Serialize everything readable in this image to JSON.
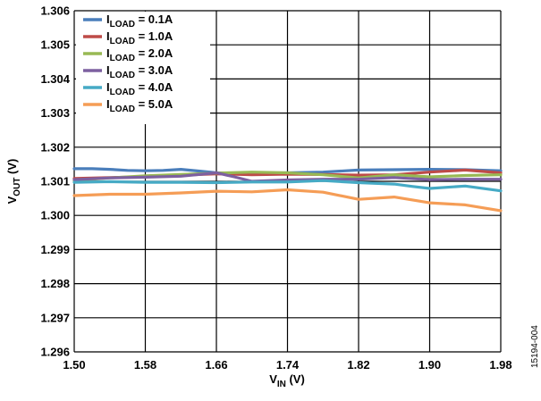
{
  "figure_id": "15194-004",
  "chart_data": {
    "type": "line",
    "xlabel": {
      "main": "V",
      "sub": "IN",
      "tail": " (V)"
    },
    "ylabel": {
      "main": "V",
      "sub": "OUT",
      "tail": " (V)"
    },
    "xlim": [
      1.5,
      1.98
    ],
    "ylim": [
      1.296,
      1.306
    ],
    "x_ticks": [
      "1.50",
      "1.58",
      "1.66",
      "1.74",
      "1.82",
      "1.90",
      "1.98"
    ],
    "y_ticks": [
      "1.296",
      "1.297",
      "1.298",
      "1.299",
      "1.300",
      "1.301",
      "1.302",
      "1.303",
      "1.304",
      "1.305",
      "1.306"
    ],
    "grid": true,
    "legend_position": "top-left",
    "series": [
      {
        "name": "I",
        "sub": "LOAD",
        "value": " = 0.1A",
        "color": "#4a7ebb",
        "x": [
          1.5,
          1.52,
          1.54,
          1.56,
          1.58,
          1.6,
          1.62,
          1.64,
          1.66,
          1.7,
          1.74,
          1.78,
          1.82,
          1.86,
          1.9,
          1.94,
          1.98
        ],
        "y": [
          1.30137,
          1.30137,
          1.30135,
          1.30132,
          1.30131,
          1.30132,
          1.30135,
          1.3013,
          1.30125,
          1.30124,
          1.30125,
          1.30127,
          1.30133,
          1.30134,
          1.30135,
          1.30134,
          1.30131
        ]
      },
      {
        "name": "I",
        "sub": "LOAD",
        "value": " = 1.0A",
        "color": "#be4b48",
        "x": [
          1.5,
          1.54,
          1.58,
          1.62,
          1.66,
          1.7,
          1.74,
          1.78,
          1.82,
          1.86,
          1.9,
          1.94,
          1.98
        ],
        "y": [
          1.30108,
          1.30111,
          1.30113,
          1.30118,
          1.30122,
          1.30119,
          1.30121,
          1.3012,
          1.30118,
          1.30119,
          1.30127,
          1.30133,
          1.30125
        ]
      },
      {
        "name": "I",
        "sub": "LOAD",
        "value": " = 2.0A",
        "color": "#98b954",
        "x": [
          1.5,
          1.54,
          1.58,
          1.62,
          1.66,
          1.7,
          1.74,
          1.78,
          1.82,
          1.86,
          1.9,
          1.94,
          1.98
        ],
        "y": [
          1.30102,
          1.3011,
          1.30116,
          1.3012,
          1.30124,
          1.30127,
          1.30125,
          1.30119,
          1.3011,
          1.30119,
          1.30113,
          1.30117,
          1.30119
        ]
      },
      {
        "name": "I",
        "sub": "LOAD",
        "value": " = 3.0A",
        "color": "#7d60a0",
        "x": [
          1.5,
          1.54,
          1.58,
          1.62,
          1.66,
          1.68,
          1.7,
          1.74,
          1.78,
          1.82,
          1.86,
          1.9,
          1.94,
          1.98
        ],
        "y": [
          1.30105,
          1.3011,
          1.30112,
          1.30115,
          1.30125,
          1.30113,
          1.301,
          1.30104,
          1.30106,
          1.30106,
          1.30111,
          1.30105,
          1.30106,
          1.30106
        ]
      },
      {
        "name": "I",
        "sub": "LOAD",
        "value": " = 4.0A",
        "color": "#46aac5",
        "x": [
          1.5,
          1.54,
          1.58,
          1.62,
          1.66,
          1.7,
          1.74,
          1.78,
          1.82,
          1.86,
          1.88,
          1.9,
          1.94,
          1.98
        ],
        "y": [
          1.30097,
          1.30099,
          1.30097,
          1.30097,
          1.30096,
          1.30098,
          1.30098,
          1.30102,
          1.30096,
          1.30092,
          1.30085,
          1.30079,
          1.30086,
          1.30072
        ]
      },
      {
        "name": "I",
        "sub": "LOAD",
        "value": " = 5.0A",
        "color": "#f59d56",
        "x": [
          1.5,
          1.54,
          1.58,
          1.62,
          1.66,
          1.7,
          1.74,
          1.78,
          1.82,
          1.86,
          1.9,
          1.94,
          1.98
        ],
        "y": [
          1.30058,
          1.30062,
          1.30062,
          1.30066,
          1.30071,
          1.30069,
          1.30075,
          1.30068,
          1.30047,
          1.30054,
          1.30037,
          1.30031,
          1.30014
        ]
      }
    ]
  }
}
